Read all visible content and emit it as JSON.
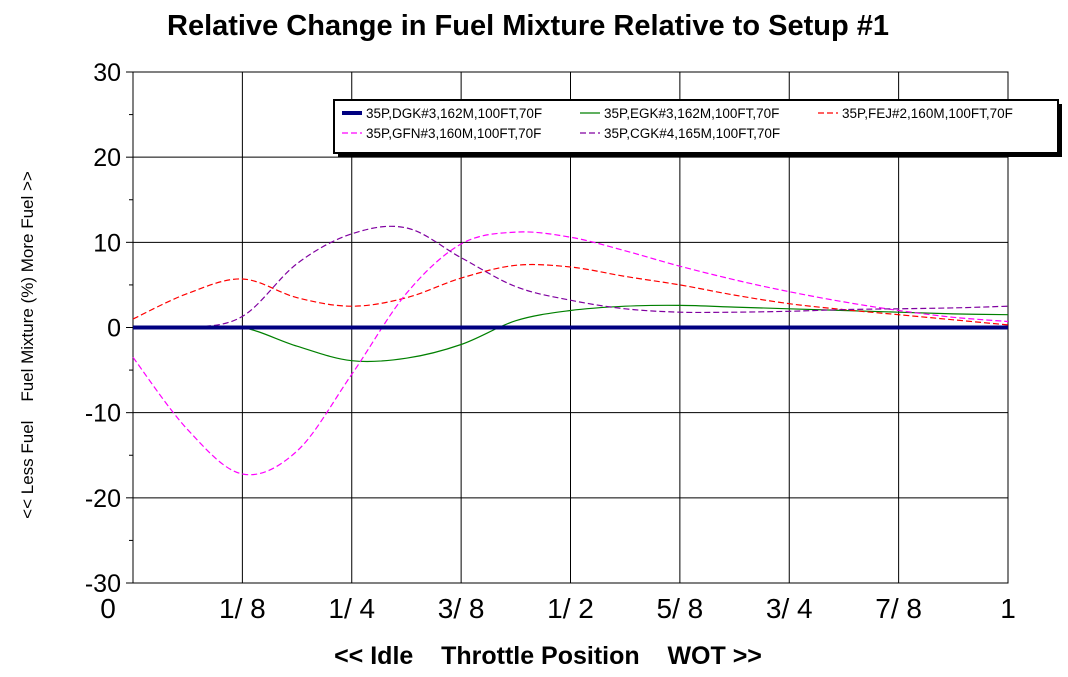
{
  "chart_data": {
    "type": "line",
    "title": "Relative Change in Fuel Mixture Relative to Setup #1",
    "xlabel": "<< Idle    Throttle Position    WOT >>",
    "ylabel": "<< Less Fuel    Fuel Mixture (%) More Fuel >>",
    "xlim": [
      0,
      1
    ],
    "ylim": [
      -30,
      30
    ],
    "yticks": [
      {
        "value": -30,
        "label": "-30"
      },
      {
        "value": -20,
        "label": "-20"
      },
      {
        "value": -10,
        "label": "-10"
      },
      {
        "value": 0,
        "label": "0"
      },
      {
        "value": 10,
        "label": "10"
      },
      {
        "value": 20,
        "label": "20"
      },
      {
        "value": 30,
        "label": "30"
      }
    ],
    "xticks": [
      {
        "value": 0,
        "label": "0"
      },
      {
        "value": 0.125,
        "label": "1/ 8"
      },
      {
        "value": 0.25,
        "label": "1/ 4"
      },
      {
        "value": 0.375,
        "label": "3/ 8"
      },
      {
        "value": 0.5,
        "label": "1/ 2"
      },
      {
        "value": 0.625,
        "label": "5/ 8"
      },
      {
        "value": 0.75,
        "label": "3/ 4"
      },
      {
        "value": 0.875,
        "label": "7/ 8"
      },
      {
        "value": 1,
        "label": "1"
      }
    ],
    "grid": true,
    "legend_position": "top-right",
    "series": [
      {
        "name": "35P,DGK#3,162M,100FT,70F",
        "color": "#000080",
        "dash": "solid",
        "weight": "thick",
        "x": [
          0,
          0.125,
          0.25,
          0.375,
          0.5,
          0.625,
          0.75,
          0.875,
          1
        ],
        "y": [
          0,
          0,
          0,
          0,
          0,
          0,
          0,
          0,
          0
        ]
      },
      {
        "name": "35P,EGK#3,162M,100FT,70F",
        "color": "#008000",
        "dash": "solid",
        "weight": "thin",
        "x": [
          0,
          0.0625,
          0.125,
          0.1875,
          0.25,
          0.3125,
          0.375,
          0.4375,
          0.5,
          0.5625,
          0.625,
          0.6875,
          0.75,
          0.8125,
          0.875,
          0.9375,
          1
        ],
        "y": [
          0,
          0,
          0,
          -2.2,
          -3.9,
          -3.6,
          -2,
          0.8,
          2,
          2.5,
          2.6,
          2.4,
          2.2,
          2.0,
          1.8,
          1.6,
          1.5
        ]
      },
      {
        "name": "35P,FEJ#2,160M,100FT,70F",
        "color": "#ff0000",
        "dash": "dashed",
        "weight": "thin",
        "x": [
          0,
          0.0625,
          0.125,
          0.1875,
          0.25,
          0.3125,
          0.375,
          0.4375,
          0.5,
          0.5625,
          0.625,
          0.6875,
          0.75,
          0.8125,
          0.875,
          0.9375,
          1
        ],
        "y": [
          1,
          4,
          5.7,
          3.5,
          2.5,
          3.5,
          5.8,
          7.3,
          7.1,
          6,
          5,
          3.8,
          2.8,
          2.1,
          1.5,
          0.9,
          0.3
        ]
      },
      {
        "name": "35P,GFN#3,160M,100FT,70F",
        "color": "#ff00ff",
        "dash": "dashed",
        "weight": "thin",
        "x": [
          0,
          0.0625,
          0.125,
          0.1875,
          0.25,
          0.3125,
          0.375,
          0.4375,
          0.5,
          0.5625,
          0.625,
          0.6875,
          0.75,
          0.8125,
          0.875,
          0.9375,
          1
        ],
        "y": [
          -3.5,
          -12,
          -17.2,
          -14.5,
          -5.5,
          4,
          9.8,
          11.2,
          10.6,
          9,
          7.2,
          5.6,
          4.2,
          3,
          2,
          1.2,
          0.7
        ]
      },
      {
        "name": "35P,CGK#4,165M,100FT,70F",
        "color": "#8000a0",
        "dash": "dashed",
        "weight": "thin",
        "x": [
          0,
          0.0625,
          0.125,
          0.1875,
          0.25,
          0.3125,
          0.375,
          0.4375,
          0.5,
          0.5625,
          0.625,
          0.6875,
          0.75,
          0.8125,
          0.875,
          0.9375,
          1
        ],
        "y": [
          0,
          0,
          1.3,
          7.5,
          11,
          11.7,
          8.2,
          4.8,
          3.2,
          2.2,
          1.8,
          1.8,
          1.9,
          2.1,
          2.2,
          2.3,
          2.5
        ]
      }
    ]
  }
}
